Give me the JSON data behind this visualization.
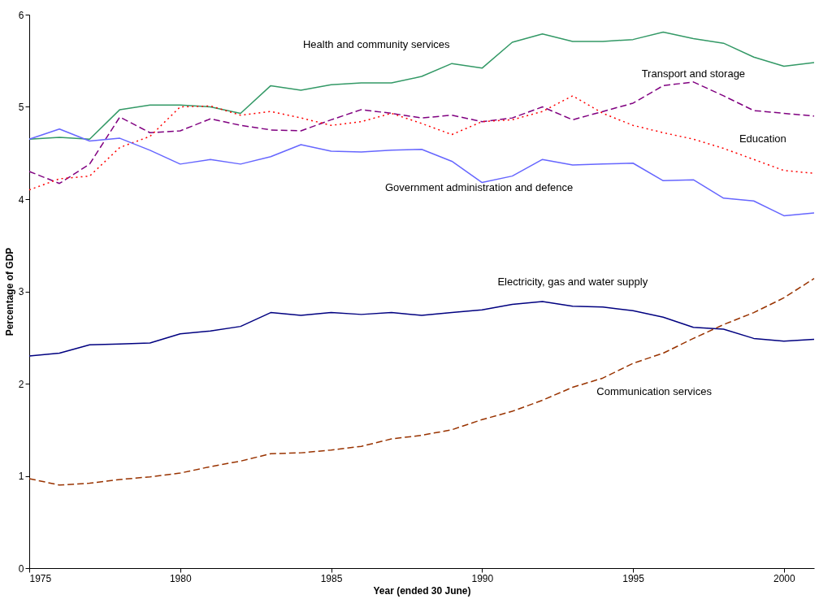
{
  "chart_data": {
    "type": "line",
    "xlabel": "Year (ended 30 June)",
    "ylabel": "Percentage of GDP",
    "x": [
      1975,
      1976,
      1977,
      1978,
      1979,
      1980,
      1981,
      1982,
      1983,
      1984,
      1985,
      1986,
      1987,
      1988,
      1989,
      1990,
      1991,
      1992,
      1993,
      1994,
      1995,
      1996,
      1997,
      1998,
      1999,
      2000,
      2001
    ],
    "xlim": [
      1975,
      2001
    ],
    "xticks": [
      1975,
      1980,
      1985,
      1990,
      1995,
      2000
    ],
    "ylim": [
      0,
      6
    ],
    "yticks": [
      0,
      1,
      2,
      3,
      4,
      5,
      6
    ],
    "grid": false,
    "marker": "none",
    "series": [
      {
        "name": "Health and community services",
        "color": "#339966",
        "line_style": "solid",
        "values": [
          4.65,
          4.67,
          4.65,
          4.97,
          5.02,
          5.02,
          5.0,
          4.93,
          5.23,
          5.18,
          5.24,
          5.26,
          5.26,
          5.33,
          5.47,
          5.42,
          5.7,
          5.79,
          5.71,
          5.71,
          5.73,
          5.81,
          5.74,
          5.69,
          5.54,
          5.44,
          5.48
        ]
      },
      {
        "name": "Transport and storage",
        "color": "#800080",
        "line_style": "dashed",
        "values": [
          4.3,
          4.17,
          4.38,
          4.89,
          4.72,
          4.74,
          4.87,
          4.8,
          4.75,
          4.74,
          4.86,
          4.97,
          4.93,
          4.88,
          4.91,
          4.84,
          4.88,
          5.0,
          4.86,
          4.95,
          5.04,
          5.23,
          5.27,
          5.12,
          4.96,
          4.93,
          4.9
        ]
      },
      {
        "name": "Education",
        "color": "#ff0000",
        "line_style": "dotted",
        "values": [
          4.1,
          4.22,
          4.25,
          4.56,
          4.68,
          5.0,
          5.01,
          4.91,
          4.95,
          4.88,
          4.8,
          4.84,
          4.93,
          4.82,
          4.7,
          4.84,
          4.86,
          4.95,
          5.12,
          4.93,
          4.8,
          4.72,
          4.65,
          4.55,
          4.43,
          4.31,
          4.28
        ]
      },
      {
        "name": "Government administration and defence",
        "color": "#6666ff",
        "line_style": "solid",
        "values": [
          4.65,
          4.76,
          4.63,
          4.66,
          4.53,
          4.38,
          4.43,
          4.38,
          4.46,
          4.59,
          4.52,
          4.51,
          4.53,
          4.54,
          4.41,
          4.18,
          4.25,
          4.43,
          4.37,
          4.38,
          4.39,
          4.2,
          4.21,
          4.01,
          3.98,
          3.82,
          3.85
        ]
      },
      {
        "name": "Electricity, gas and water supply",
        "color": "#000080",
        "line_style": "solid",
        "values": [
          2.3,
          2.33,
          2.42,
          2.43,
          2.44,
          2.54,
          2.57,
          2.62,
          2.77,
          2.74,
          2.77,
          2.75,
          2.77,
          2.74,
          2.77,
          2.8,
          2.86,
          2.89,
          2.84,
          2.83,
          2.79,
          2.72,
          2.61,
          2.59,
          2.49,
          2.46,
          2.48
        ]
      },
      {
        "name": "Communication services",
        "color": "#993300",
        "line_style": "dashed",
        "values": [
          0.97,
          0.9,
          0.92,
          0.96,
          0.99,
          1.03,
          1.1,
          1.16,
          1.24,
          1.25,
          1.28,
          1.32,
          1.4,
          1.44,
          1.5,
          1.61,
          1.7,
          1.82,
          1.96,
          2.06,
          2.22,
          2.33,
          2.49,
          2.64,
          2.77,
          2.93,
          3.14
        ]
      }
    ]
  }
}
